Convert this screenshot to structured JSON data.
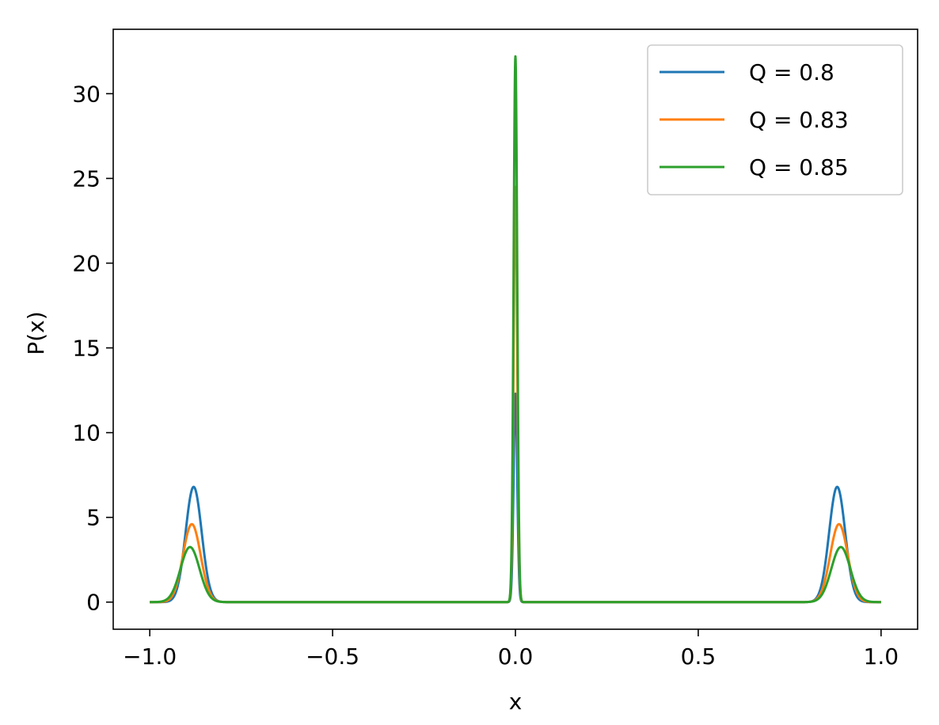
{
  "chart_data": {
    "type": "line",
    "xlabel": "x",
    "ylabel": "P(x)",
    "xlim": [
      -1.1,
      1.1
    ],
    "ylim": [
      -1.6,
      33.8
    ],
    "xticks": [
      -1.0,
      -0.5,
      0.0,
      0.5,
      1.0
    ],
    "xtick_labels": [
      "−1.0",
      "−0.5",
      "0.0",
      "0.5",
      "1.0"
    ],
    "yticks": [
      0,
      5,
      10,
      15,
      20,
      25,
      30
    ],
    "ytick_labels": [
      "0",
      "5",
      "10",
      "15",
      "20",
      "25",
      "30"
    ],
    "grid": false,
    "legend_position": "top-right",
    "series": [
      {
        "name": "Q = 0.8",
        "color": "#1f77b4",
        "peaks": [
          {
            "center": -0.88,
            "height": 6.8,
            "width": 0.022
          },
          {
            "center": 0.0,
            "height": 12.3,
            "width": 0.005
          },
          {
            "center": 0.88,
            "height": 6.8,
            "width": 0.022
          }
        ]
      },
      {
        "name": "Q = 0.83",
        "color": "#ff7f0e",
        "peaks": [
          {
            "center": -0.885,
            "height": 4.6,
            "width": 0.024
          },
          {
            "center": 0.0,
            "height": 24.5,
            "width": 0.005
          },
          {
            "center": 0.885,
            "height": 4.6,
            "width": 0.024
          }
        ]
      },
      {
        "name": "Q = 0.85",
        "color": "#2ca02c",
        "peaks": [
          {
            "center": -0.89,
            "height": 3.25,
            "width": 0.026
          },
          {
            "center": 0.0,
            "height": 32.2,
            "width": 0.005
          },
          {
            "center": 0.89,
            "height": 3.25,
            "width": 0.026
          }
        ]
      }
    ]
  }
}
